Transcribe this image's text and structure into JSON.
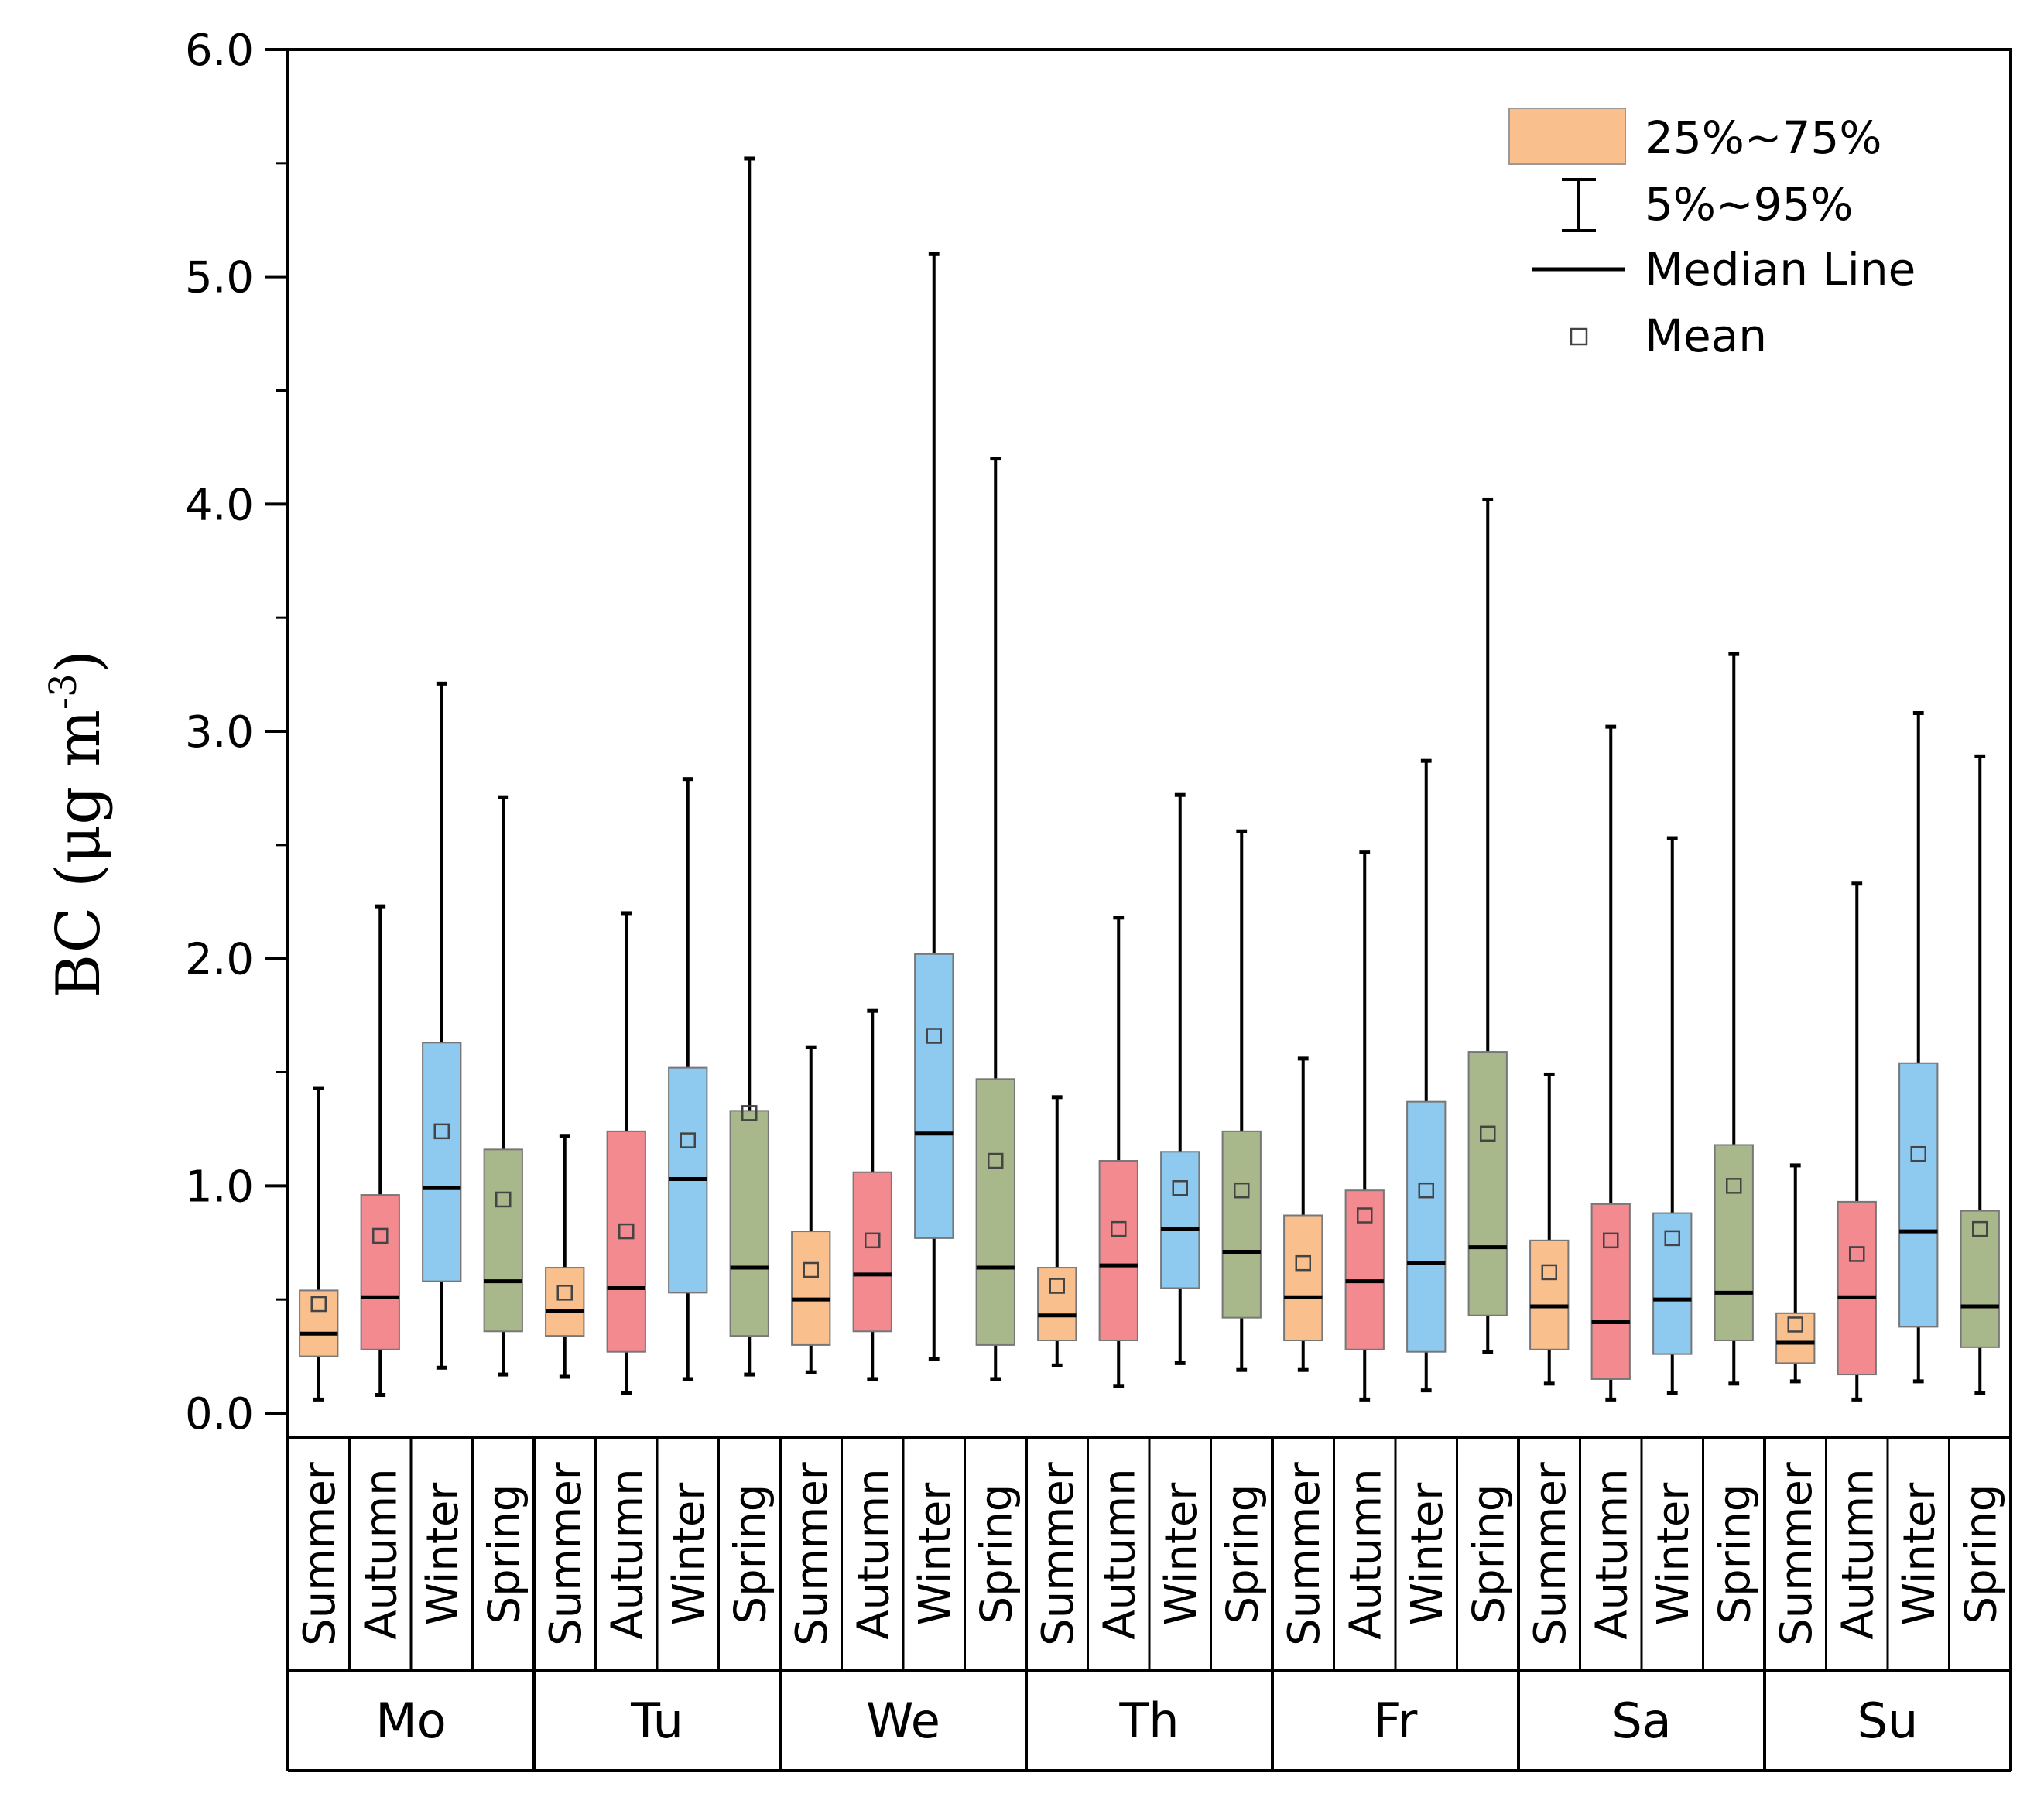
{
  "chart_data": {
    "type": "box",
    "ylabel": "BC (μg m⁻³)",
    "ylabel_main": "BC (μg m",
    "ylabel_sup": "-3",
    "ylabel_close": ")",
    "ylim": [
      0,
      6
    ],
    "yticks": [
      "0.0",
      "1.0",
      "2.0",
      "3.0",
      "4.0",
      "5.0",
      "6.0"
    ],
    "yticks_values": [
      0,
      1,
      2,
      3,
      4,
      5,
      6
    ],
    "days": [
      "Mo",
      "Tu",
      "We",
      "Th",
      "Fr",
      "Sa",
      "Su"
    ],
    "seasons": [
      "Summer",
      "Autumn",
      "Winter",
      "Spring"
    ],
    "colors": {
      "Summer": "#f9c08e",
      "Autumn": "#f28a90",
      "Winter": "#8ec9ef",
      "Spring": "#a9b88a"
    },
    "legend": {
      "box": "25%~75%",
      "whisker": "5%~95%",
      "median": "Median Line",
      "mean": "Mean",
      "position": "top-right"
    },
    "series": [
      {
        "day": "Mo",
        "season": "Summer",
        "p5": 0.06,
        "q1": 0.25,
        "median": 0.35,
        "q3": 0.54,
        "p95": 1.43,
        "mean": 0.48
      },
      {
        "day": "Mo",
        "season": "Autumn",
        "p5": 0.08,
        "q1": 0.28,
        "median": 0.51,
        "q3": 0.96,
        "p95": 2.23,
        "mean": 0.78
      },
      {
        "day": "Mo",
        "season": "Winter",
        "p5": 0.2,
        "q1": 0.58,
        "median": 0.99,
        "q3": 1.63,
        "p95": 3.21,
        "mean": 1.24
      },
      {
        "day": "Mo",
        "season": "Spring",
        "p5": 0.17,
        "q1": 0.36,
        "median": 0.58,
        "q3": 1.16,
        "p95": 2.71,
        "mean": 0.94
      },
      {
        "day": "Tu",
        "season": "Summer",
        "p5": 0.16,
        "q1": 0.34,
        "median": 0.45,
        "q3": 0.64,
        "p95": 1.22,
        "mean": 0.53
      },
      {
        "day": "Tu",
        "season": "Autumn",
        "p5": 0.09,
        "q1": 0.27,
        "median": 0.55,
        "q3": 1.24,
        "p95": 2.2,
        "mean": 0.8
      },
      {
        "day": "Tu",
        "season": "Winter",
        "p5": 0.15,
        "q1": 0.53,
        "median": 1.03,
        "q3": 1.52,
        "p95": 2.79,
        "mean": 1.2
      },
      {
        "day": "Tu",
        "season": "Spring",
        "p5": 0.17,
        "q1": 0.34,
        "median": 0.64,
        "q3": 1.33,
        "p95": 5.52,
        "mean": 1.32
      },
      {
        "day": "We",
        "season": "Summer",
        "p5": 0.18,
        "q1": 0.3,
        "median": 0.5,
        "q3": 0.8,
        "p95": 1.61,
        "mean": 0.63
      },
      {
        "day": "We",
        "season": "Autumn",
        "p5": 0.15,
        "q1": 0.36,
        "median": 0.61,
        "q3": 1.06,
        "p95": 1.77,
        "mean": 0.76
      },
      {
        "day": "We",
        "season": "Winter",
        "p5": 0.24,
        "q1": 0.77,
        "median": 1.23,
        "q3": 2.02,
        "p95": 5.1,
        "mean": 1.66
      },
      {
        "day": "We",
        "season": "Spring",
        "p5": 0.15,
        "q1": 0.3,
        "median": 0.64,
        "q3": 1.47,
        "p95": 4.2,
        "mean": 1.11
      },
      {
        "day": "Th",
        "season": "Summer",
        "p5": 0.21,
        "q1": 0.32,
        "median": 0.43,
        "q3": 0.64,
        "p95": 1.39,
        "mean": 0.56
      },
      {
        "day": "Th",
        "season": "Autumn",
        "p5": 0.12,
        "q1": 0.32,
        "median": 0.65,
        "q3": 1.11,
        "p95": 2.18,
        "mean": 0.81
      },
      {
        "day": "Th",
        "season": "Winter",
        "p5": 0.22,
        "q1": 0.55,
        "median": 0.81,
        "q3": 1.15,
        "p95": 2.72,
        "mean": 0.99
      },
      {
        "day": "Th",
        "season": "Spring",
        "p5": 0.19,
        "q1": 0.42,
        "median": 0.71,
        "q3": 1.24,
        "p95": 2.56,
        "mean": 0.98
      },
      {
        "day": "Fr",
        "season": "Summer",
        "p5": 0.19,
        "q1": 0.32,
        "median": 0.51,
        "q3": 0.87,
        "p95": 1.56,
        "mean": 0.66
      },
      {
        "day": "Fr",
        "season": "Autumn",
        "p5": 0.06,
        "q1": 0.28,
        "median": 0.58,
        "q3": 0.98,
        "p95": 2.47,
        "mean": 0.87
      },
      {
        "day": "Fr",
        "season": "Winter",
        "p5": 0.1,
        "q1": 0.27,
        "median": 0.66,
        "q3": 1.37,
        "p95": 2.87,
        "mean": 0.98
      },
      {
        "day": "Fr",
        "season": "Spring",
        "p5": 0.27,
        "q1": 0.43,
        "median": 0.73,
        "q3": 1.59,
        "p95": 4.02,
        "mean": 1.23
      },
      {
        "day": "Sa",
        "season": "Summer",
        "p5": 0.13,
        "q1": 0.28,
        "median": 0.47,
        "q3": 0.76,
        "p95": 1.49,
        "mean": 0.62
      },
      {
        "day": "Sa",
        "season": "Autumn",
        "p5": 0.06,
        "q1": 0.15,
        "median": 0.4,
        "q3": 0.92,
        "p95": 3.02,
        "mean": 0.76
      },
      {
        "day": "Sa",
        "season": "Winter",
        "p5": 0.09,
        "q1": 0.26,
        "median": 0.5,
        "q3": 0.88,
        "p95": 2.53,
        "mean": 0.77
      },
      {
        "day": "Sa",
        "season": "Spring",
        "p5": 0.13,
        "q1": 0.32,
        "median": 0.53,
        "q3": 1.18,
        "p95": 3.34,
        "mean": 1.0
      },
      {
        "day": "Su",
        "season": "Summer",
        "p5": 0.14,
        "q1": 0.22,
        "median": 0.31,
        "q3": 0.44,
        "p95": 1.09,
        "mean": 0.39
      },
      {
        "day": "Su",
        "season": "Autumn",
        "p5": 0.06,
        "q1": 0.17,
        "median": 0.51,
        "q3": 0.93,
        "p95": 2.33,
        "mean": 0.7
      },
      {
        "day": "Su",
        "season": "Winter",
        "p5": 0.14,
        "q1": 0.38,
        "median": 0.8,
        "q3": 1.54,
        "p95": 3.08,
        "mean": 1.14
      },
      {
        "day": "Su",
        "season": "Spring",
        "p5": 0.09,
        "q1": 0.29,
        "median": 0.47,
        "q3": 0.89,
        "p95": 2.89,
        "mean": 0.81
      }
    ]
  }
}
